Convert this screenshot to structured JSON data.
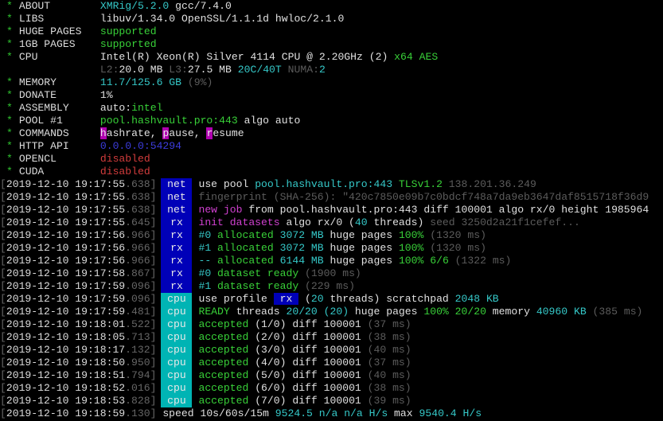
{
  "colors": {
    "tag_net": "#0000b8",
    "tag_rx": "#0000b8",
    "tag_cpu": "#00b4b4",
    "accent_green": "#38d038",
    "accent_cyan": "#35c8c8"
  },
  "header": [
    {
      "label": "ABOUT",
      "segments": [
        {
          "t": "XMRig/5.2.0",
          "c": "c"
        },
        {
          "t": " gcc/7.4.0",
          "c": "w"
        }
      ]
    },
    {
      "label": "LIBS",
      "segments": [
        {
          "t": "libuv/1.34.0 OpenSSL/1.1.1d hwloc/2.1.0",
          "c": "w"
        }
      ]
    },
    {
      "label": "HUGE PAGES",
      "segments": [
        {
          "t": "supported",
          "c": "g"
        }
      ]
    },
    {
      "label": "1GB PAGES",
      "segments": [
        {
          "t": "supported",
          "c": "g"
        }
      ]
    },
    {
      "label": "CPU",
      "segments": [
        {
          "t": "Intel(R) Xeon(R) Silver 4114 CPU @ 2.20GHz (2) ",
          "c": "w"
        },
        {
          "t": "x64 AES",
          "c": "g"
        }
      ]
    },
    {
      "label": "",
      "segments": [
        {
          "t": "L2:",
          "c": "gr"
        },
        {
          "t": "20.0 MB",
          "c": "w"
        },
        {
          "t": " L3:",
          "c": "gr"
        },
        {
          "t": "27.5 MB",
          "c": "w"
        },
        {
          "t": " 20C/40T",
          "c": "c"
        },
        {
          "t": " NUMA:",
          "c": "gr"
        },
        {
          "t": "2",
          "c": "c"
        }
      ]
    },
    {
      "label": "MEMORY",
      "segments": [
        {
          "t": "11.7/125.6 GB",
          "c": "c"
        },
        {
          "t": " (9%)",
          "c": "gr"
        }
      ]
    },
    {
      "label": "DONATE",
      "segments": [
        {
          "t": "1%",
          "c": "w"
        }
      ]
    },
    {
      "label": "ASSEMBLY",
      "segments": [
        {
          "t": "auto:",
          "c": "w"
        },
        {
          "t": "intel",
          "c": "g"
        }
      ]
    },
    {
      "label": "POOL #1",
      "segments": [
        {
          "t": "pool.hashvault.pro:443",
          "c": "g"
        },
        {
          "t": " algo auto",
          "c": "w"
        }
      ]
    },
    {
      "label": "COMMANDS",
      "segments": [
        {
          "t": "h",
          "c": "mbg"
        },
        {
          "t": "ashrate, ",
          "c": "w"
        },
        {
          "t": "p",
          "c": "mbg"
        },
        {
          "t": "ause, ",
          "c": "w"
        },
        {
          "t": "r",
          "c": "mbg"
        },
        {
          "t": "esume",
          "c": "w"
        }
      ]
    },
    {
      "label": "HTTP API",
      "segments": [
        {
          "t": "0.0.0.0:54294",
          "c": "b"
        }
      ]
    },
    {
      "label": "OPENCL",
      "segments": [
        {
          "t": "disabled",
          "c": "r"
        }
      ]
    },
    {
      "label": "CUDA",
      "segments": [
        {
          "t": "disabled",
          "c": "r"
        }
      ]
    }
  ],
  "log": [
    {
      "date": "2019-12-10",
      "time": "19:17:55",
      "ms": ".638",
      "tag": "net",
      "segments": [
        {
          "t": "use pool ",
          "c": "w"
        },
        {
          "t": "pool.hashvault.pro:443",
          "c": "c"
        },
        {
          "t": " TLSv1.2",
          "c": "g"
        },
        {
          "t": " 138.201.36.249",
          "c": "gr"
        }
      ]
    },
    {
      "date": "2019-12-10",
      "time": "19:17:55",
      "ms": ".638",
      "tag": "net",
      "segments": [
        {
          "t": "fingerprint (SHA-256): \"420c7850e09b7c0bdcf748a7da9eb3647daf8515718f36d9",
          "c": "gr"
        }
      ]
    },
    {
      "date": "2019-12-10",
      "time": "19:17:55",
      "ms": ".638",
      "tag": "net",
      "segments": [
        {
          "t": "new job",
          "c": "m"
        },
        {
          "t": " from pool.hashvault.pro:443 diff 100001 algo rx/0 height 1985964",
          "c": "w"
        }
      ]
    },
    {
      "date": "2019-12-10",
      "time": "19:17:55",
      "ms": ".645",
      "tag": "rx",
      "segments": [
        {
          "t": "init datasets",
          "c": "m"
        },
        {
          "t": " algo rx/0 (",
          "c": "w"
        },
        {
          "t": "40",
          "c": "c"
        },
        {
          "t": " threads)",
          "c": "w"
        },
        {
          "t": " seed 3250d2a21f1cefef...",
          "c": "gr"
        }
      ]
    },
    {
      "date": "2019-12-10",
      "time": "19:17:56",
      "ms": ".966",
      "tag": "rx",
      "segments": [
        {
          "t": "#0",
          "c": "c"
        },
        {
          "t": " allocated ",
          "c": "g"
        },
        {
          "t": "3072 MB",
          "c": "c"
        },
        {
          "t": " huge pages ",
          "c": "w"
        },
        {
          "t": "100%",
          "c": "g"
        },
        {
          "t": " (1320 ms)",
          "c": "gr"
        }
      ]
    },
    {
      "date": "2019-12-10",
      "time": "19:17:56",
      "ms": ".966",
      "tag": "rx",
      "segments": [
        {
          "t": "#1",
          "c": "c"
        },
        {
          "t": " allocated ",
          "c": "g"
        },
        {
          "t": "3072 MB",
          "c": "c"
        },
        {
          "t": " huge pages ",
          "c": "w"
        },
        {
          "t": "100%",
          "c": "g"
        },
        {
          "t": " (1320 ms)",
          "c": "gr"
        }
      ]
    },
    {
      "date": "2019-12-10",
      "time": "19:17:56",
      "ms": ".966",
      "tag": "rx",
      "segments": [
        {
          "t": "--",
          "c": "c"
        },
        {
          "t": " allocated ",
          "c": "g"
        },
        {
          "t": "6144 MB",
          "c": "c"
        },
        {
          "t": " huge pages ",
          "c": "w"
        },
        {
          "t": "100% 6/6",
          "c": "g"
        },
        {
          "t": " (1322 ms)",
          "c": "gr"
        }
      ]
    },
    {
      "date": "2019-12-10",
      "time": "19:17:58",
      "ms": ".867",
      "tag": "rx",
      "segments": [
        {
          "t": "#0",
          "c": "c"
        },
        {
          "t": " dataset ready",
          "c": "g"
        },
        {
          "t": " (1900 ms)",
          "c": "gr"
        }
      ]
    },
    {
      "date": "2019-12-10",
      "time": "19:17:59",
      "ms": ".096",
      "tag": "rx",
      "segments": [
        {
          "t": "#1",
          "c": "c"
        },
        {
          "t": " dataset ready",
          "c": "g"
        },
        {
          "t": " (229 ms)",
          "c": "gr"
        }
      ]
    },
    {
      "date": "2019-12-10",
      "time": "19:17:59",
      "ms": ".096",
      "tag": "cpu",
      "segments": [
        {
          "t": "use profile ",
          "c": "w"
        },
        {
          "t": " rx ",
          "c": "bbg"
        },
        {
          "t": " (",
          "c": "w"
        },
        {
          "t": "20",
          "c": "c"
        },
        {
          "t": " threads) scratchpad ",
          "c": "w"
        },
        {
          "t": "2048 KB",
          "c": "c"
        }
      ]
    },
    {
      "date": "2019-12-10",
      "time": "19:17:59",
      "ms": ".481",
      "tag": "cpu",
      "segments": [
        {
          "t": "READY",
          "c": "g"
        },
        {
          "t": " threads ",
          "c": "w"
        },
        {
          "t": "20/20 (20)",
          "c": "c"
        },
        {
          "t": " huge pages ",
          "c": "w"
        },
        {
          "t": "100% 20/20",
          "c": "g"
        },
        {
          "t": " memory ",
          "c": "w"
        },
        {
          "t": "40960 KB",
          "c": "c"
        },
        {
          "t": " (385 ms)",
          "c": "gr"
        }
      ]
    },
    {
      "date": "2019-12-10",
      "time": "19:18:01",
      "ms": ".522",
      "tag": "cpu",
      "segments": [
        {
          "t": "accepted",
          "c": "g"
        },
        {
          "t": " (1/0) diff 100001 ",
          "c": "w"
        },
        {
          "t": "(37 ms)",
          "c": "gr"
        }
      ]
    },
    {
      "date": "2019-12-10",
      "time": "19:18:05",
      "ms": ".713",
      "tag": "cpu",
      "segments": [
        {
          "t": "accepted",
          "c": "g"
        },
        {
          "t": " (2/0) diff 100001 ",
          "c": "w"
        },
        {
          "t": "(38 ms)",
          "c": "gr"
        }
      ]
    },
    {
      "date": "2019-12-10",
      "time": "19:18:17",
      "ms": ".132",
      "tag": "cpu",
      "segments": [
        {
          "t": "accepted",
          "c": "g"
        },
        {
          "t": " (3/0) diff 100001 ",
          "c": "w"
        },
        {
          "t": "(40 ms)",
          "c": "gr"
        }
      ]
    },
    {
      "date": "2019-12-10",
      "time": "19:18:50",
      "ms": ".950",
      "tag": "cpu",
      "segments": [
        {
          "t": "accepted",
          "c": "g"
        },
        {
          "t": " (4/0) diff 100001 ",
          "c": "w"
        },
        {
          "t": "(37 ms)",
          "c": "gr"
        }
      ]
    },
    {
      "date": "2019-12-10",
      "time": "19:18:51",
      "ms": ".794",
      "tag": "cpu",
      "segments": [
        {
          "t": "accepted",
          "c": "g"
        },
        {
          "t": " (5/0) diff 100001 ",
          "c": "w"
        },
        {
          "t": "(40 ms)",
          "c": "gr"
        }
      ]
    },
    {
      "date": "2019-12-10",
      "time": "19:18:52",
      "ms": ".016",
      "tag": "cpu",
      "segments": [
        {
          "t": "accepted",
          "c": "g"
        },
        {
          "t": " (6/0) diff 100001 ",
          "c": "w"
        },
        {
          "t": "(38 ms)",
          "c": "gr"
        }
      ]
    },
    {
      "date": "2019-12-10",
      "time": "19:18:53",
      "ms": ".828",
      "tag": "cpu",
      "segments": [
        {
          "t": "accepted",
          "c": "g"
        },
        {
          "t": " (7/0) diff 100001 ",
          "c": "w"
        },
        {
          "t": "(39 ms)",
          "c": "gr"
        }
      ]
    },
    {
      "date": "2019-12-10",
      "time": "19:18:59",
      "ms": ".130",
      "tag": "",
      "segments": [
        {
          "t": " speed 10s/60s/15m ",
          "c": "w"
        },
        {
          "t": "9524.5 n/a n/a H/s",
          "c": "c"
        },
        {
          "t": " max ",
          "c": "w"
        },
        {
          "t": "9540.4 H/s",
          "c": "c"
        }
      ]
    }
  ]
}
